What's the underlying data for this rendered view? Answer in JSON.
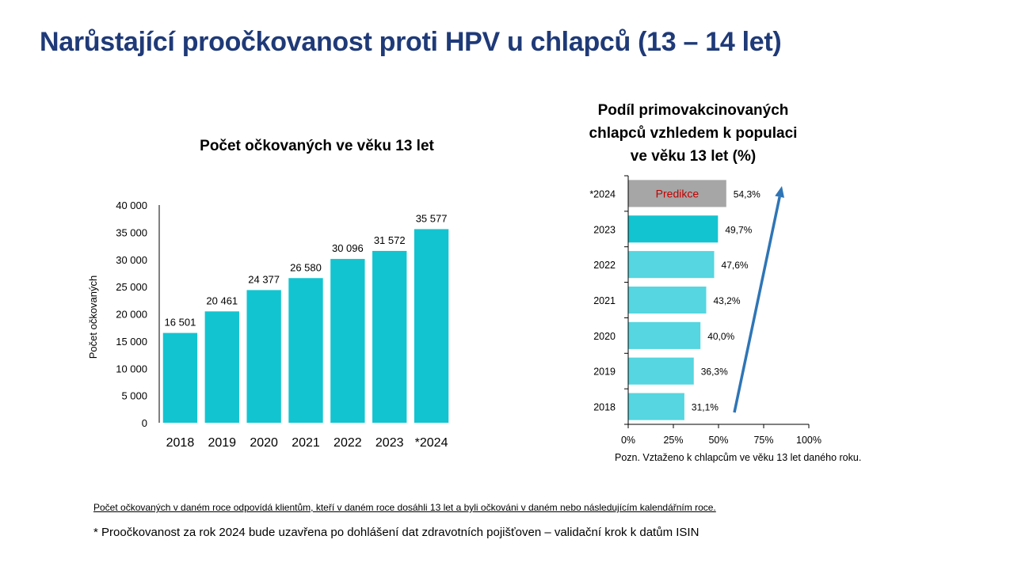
{
  "title": "Narůstající proočkovanost proti HPV u chlapců (13 – 14 let)",
  "colors": {
    "title": "#1f3a78",
    "bar_left": "#12c4d0",
    "bar_right": "#55d6e0",
    "bar_right_highlight": "#12c4d0",
    "bar_prediction": "#a6a6a6",
    "prediction_text": "#c00000",
    "arrow": "#2e75b6"
  },
  "chart_data": [
    {
      "type": "bar",
      "orientation": "vertical",
      "title": "Počet očkovaných ve věku 13 let",
      "ylabel": "Počet očkovaných",
      "categories": [
        "2018",
        "2019",
        "2020",
        "2021",
        "2022",
        "2023",
        "*2024"
      ],
      "values": [
        16501,
        20461,
        24377,
        26580,
        30096,
        31572,
        35577
      ],
      "data_labels": [
        "16 501",
        "20 461",
        "24 377",
        "26 580",
        "30 096",
        "31 572",
        "35 577"
      ],
      "ylim": [
        0,
        40000
      ],
      "yticks": [
        0,
        5000,
        10000,
        15000,
        20000,
        25000,
        30000,
        35000,
        40000
      ],
      "ytick_labels": [
        "0",
        "5 000",
        "10 000",
        "15 000",
        "20 000",
        "25 000",
        "30 000",
        "35 000",
        "40 000"
      ],
      "grid": false,
      "legend": "none"
    },
    {
      "type": "bar",
      "orientation": "horizontal",
      "title": "Podíl primovakcinovaných chlapců vzhledem k populaci ve věku 13 let (%)",
      "title_lines": [
        "Podíl primovakcinovaných",
        "chlapců vzhledem k populaci",
        "ve věku 13 let (%)"
      ],
      "categories": [
        "*2024",
        "2023",
        "2022",
        "2021",
        "2020",
        "2019",
        "2018"
      ],
      "values": [
        54.3,
        49.7,
        47.6,
        43.2,
        40.0,
        36.3,
        31.1
      ],
      "data_labels": [
        "54,3%",
        "49,7%",
        "47,6%",
        "43,2%",
        "40,0%",
        "36,3%",
        "31,1%"
      ],
      "bar_text": "Predikce",
      "xlim": [
        0,
        100
      ],
      "xticks": [
        0,
        25,
        50,
        75,
        100
      ],
      "xtick_labels": [
        "0%",
        "25%",
        "50%",
        "75%",
        "100%"
      ],
      "note": "Pozn. Vztaženo k chlapcům ve věku 13 let daného roku.",
      "grid": false,
      "legend": "none"
    }
  ],
  "footnotes": {
    "definition": "Počet očkovaných v daném roce odpovídá klientům, kteří v daném roce dosáhli 13 let a byli očkováni v daném nebo následujícím kalendářním roce.",
    "prediction": "* Proočkovanost za rok 2024 bude uzavřena po dohlášení dat zdravotních pojišťoven – validační krok k datům ISIN"
  }
}
